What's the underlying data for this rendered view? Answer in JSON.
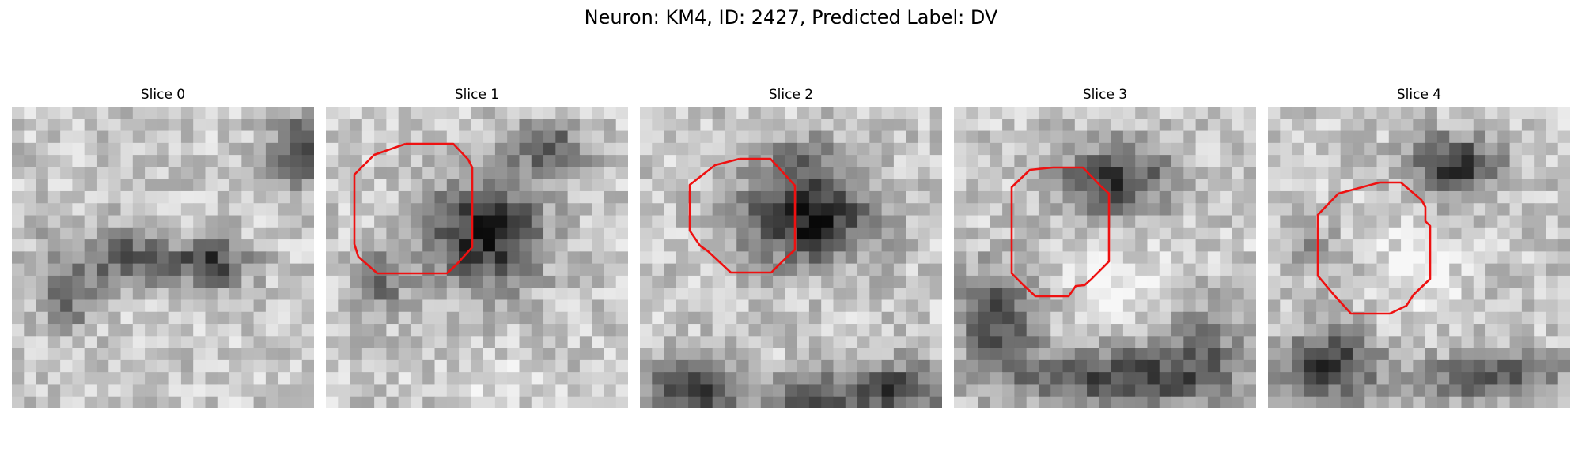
{
  "figure": {
    "title": "Neuron: KM4, ID: 2427, Predicted Label: DV"
  },
  "panels": [
    {
      "title": "Slice 0",
      "roi_outline": false
    },
    {
      "title": "Slice 1",
      "roi_outline": true
    },
    {
      "title": "Slice 2",
      "roi_outline": true
    },
    {
      "title": "Slice 3",
      "roi_outline": true
    },
    {
      "title": "Slice 4",
      "roi_outline": true
    }
  ],
  "colors": {
    "roi_outline": "#ee1111",
    "colormap": "gray"
  }
}
